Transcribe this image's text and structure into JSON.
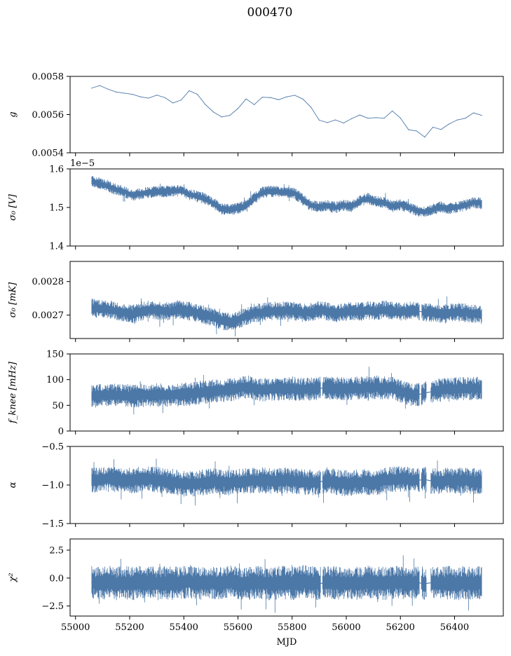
{
  "figure": {
    "title": "000470"
  },
  "chart_data": [
    {
      "type": "line",
      "ylabel": "g",
      "xlim": [
        54980,
        56580
      ],
      "ylim": [
        0.0054,
        0.0058
      ],
      "y_ticks": [
        "0.0054",
        "0.0056",
        "0.0058"
      ],
      "y_tick_values": [
        0.0054,
        0.0056,
        0.0058
      ],
      "x_ticklabels_visible": false,
      "series": [
        {
          "x": [
            55060,
            55090,
            55120,
            55150,
            55180,
            55210,
            55240,
            55270,
            55300,
            55330,
            55360,
            55390,
            55420,
            55450,
            55480,
            55510,
            55540,
            55570,
            55600,
            55630,
            55660,
            55690,
            55720,
            55750,
            55780,
            55810,
            55840,
            55870,
            55900,
            55930,
            55960,
            55990,
            56020,
            56050,
            56080,
            56110,
            56140,
            56170,
            56200,
            56230,
            56260,
            56290,
            56320,
            56350,
            56380,
            56410,
            56440,
            56470,
            56500
          ],
          "values": [
            0.005739,
            0.005752,
            0.005733,
            0.005718,
            0.005712,
            0.005706,
            0.005693,
            0.005686,
            0.005702,
            0.005689,
            0.005661,
            0.005676,
            0.005725,
            0.005706,
            0.005652,
            0.005613,
            0.005588,
            0.005596,
            0.005632,
            0.005682,
            0.005652,
            0.005691,
            0.005689,
            0.005678,
            0.005693,
            0.005701,
            0.005681,
            0.005638,
            0.005571,
            0.005558,
            0.005572,
            0.005556,
            0.005579,
            0.005598,
            0.005581,
            0.005584,
            0.005581,
            0.005619,
            0.005582,
            0.005521,
            0.005514,
            0.005482,
            0.005534,
            0.005522,
            0.005551,
            0.005572,
            0.005581,
            0.005609,
            0.005596
          ]
        }
      ],
      "style": {
        "band": 0,
        "color": "#4c78a8"
      }
    },
    {
      "type": "line",
      "ylabel": "σ₀ [V]",
      "offset_text": "1e−5",
      "xlim": [
        54980,
        56580
      ],
      "ylim": [
        1.4,
        1.6
      ],
      "y_ticks": [
        "1.4",
        "1.5",
        "1.6"
      ],
      "y_tick_values": [
        1.4,
        1.5,
        1.6
      ],
      "x_ticklabels_visible": false,
      "series": [
        {
          "x": [
            55060,
            55090,
            55120,
            55150,
            55180,
            55210,
            55240,
            55270,
            55300,
            55330,
            55360,
            55390,
            55420,
            55450,
            55480,
            55510,
            55540,
            55570,
            55600,
            55630,
            55660,
            55690,
            55720,
            55750,
            55780,
            55810,
            55840,
            55870,
            55900,
            55930,
            55960,
            55990,
            56020,
            56050,
            56080,
            56110,
            56140,
            56170,
            56200,
            56230,
            56260,
            56290,
            56320,
            56350,
            56380,
            56410,
            56440,
            56470,
            56500
          ],
          "values": [
            1.568,
            1.562,
            1.555,
            1.547,
            1.541,
            1.532,
            1.536,
            1.539,
            1.542,
            1.541,
            1.543,
            1.544,
            1.534,
            1.529,
            1.522,
            1.51,
            1.496,
            1.494,
            1.498,
            1.505,
            1.525,
            1.539,
            1.542,
            1.541,
            1.539,
            1.536,
            1.52,
            1.505,
            1.502,
            1.505,
            1.5,
            1.506,
            1.503,
            1.517,
            1.523,
            1.515,
            1.513,
            1.503,
            1.507,
            1.501,
            1.492,
            1.488,
            1.495,
            1.501,
            1.497,
            1.501,
            1.506,
            1.513,
            1.511
          ]
        }
      ],
      "style": {
        "band": 0.015,
        "color": "#4c78a8"
      }
    },
    {
      "type": "line",
      "ylabel": "σ₀ [mK]",
      "xlim": [
        54980,
        56580
      ],
      "ylim": [
        0.00263,
        0.00286
      ],
      "y_ticks": [
        "0.0027",
        "0.0028"
      ],
      "y_tick_values": [
        0.0027,
        0.0028
      ],
      "x_ticklabels_visible": false,
      "series": [
        {
          "x": [
            55060,
            55090,
            55120,
            55150,
            55180,
            55210,
            55240,
            55270,
            55300,
            55330,
            55360,
            55390,
            55420,
            55450,
            55480,
            55510,
            55540,
            55570,
            55600,
            55630,
            55660,
            55690,
            55720,
            55750,
            55780,
            55810,
            55840,
            55870,
            55900,
            55930,
            55960,
            55990,
            56020,
            56050,
            56080,
            56110,
            56140,
            56170,
            56200,
            56230,
            56260,
            56290,
            56320,
            56350,
            56380,
            56410,
            56440,
            56470,
            56500
          ],
          "values": [
            0.002722,
            0.002718,
            0.002717,
            0.002712,
            0.002707,
            0.002703,
            0.002708,
            0.002716,
            0.002714,
            0.002711,
            0.002712,
            0.002717,
            0.002712,
            0.002705,
            0.002699,
            0.002694,
            0.002682,
            0.002679,
            0.002686,
            0.002697,
            0.002706,
            0.002708,
            0.002711,
            0.002713,
            0.002714,
            0.002712,
            0.002707,
            0.002709,
            0.002714,
            0.002711,
            0.002706,
            0.002709,
            0.002712,
            0.002711,
            0.002714,
            0.002711,
            0.002716,
            0.002712,
            0.002709,
            0.002712,
            0.002713,
            0.002708,
            0.002707,
            0.002704,
            0.002707,
            0.002709,
            0.002707,
            0.002704,
            0.002701
          ]
        }
      ],
      "style": {
        "band": 2.8e-05,
        "color": "#4c78a8",
        "gaps": [
          [
            56270,
            56278
          ]
        ]
      }
    },
    {
      "type": "line",
      "ylabel": "f_knee [mHz]",
      "xlim": [
        54980,
        56580
      ],
      "ylim": [
        0,
        150
      ],
      "y_ticks": [
        "0",
        "50",
        "100",
        "150"
      ],
      "y_tick_values": [
        0,
        50,
        100,
        150
      ],
      "x_ticklabels_visible": false,
      "series": [
        {
          "x": [
            55060,
            55090,
            55120,
            55150,
            55180,
            55210,
            55240,
            55270,
            55300,
            55330,
            55360,
            55390,
            55420,
            55450,
            55480,
            55510,
            55540,
            55570,
            55600,
            55630,
            55660,
            55690,
            55720,
            55750,
            55780,
            55810,
            55840,
            55870,
            55900,
            55930,
            55960,
            55990,
            56020,
            56050,
            56080,
            56110,
            56140,
            56170,
            56200,
            56230,
            56260,
            56290,
            56320,
            56350,
            56380,
            56410,
            56440,
            56470,
            56500
          ],
          "values": [
            68,
            69,
            69,
            70,
            69,
            68,
            69,
            70,
            70,
            70,
            70,
            71,
            72,
            74,
            76,
            78,
            79,
            80,
            84,
            86,
            83,
            80,
            82,
            82,
            83,
            82,
            81,
            82,
            83,
            84,
            83,
            82,
            83,
            83,
            84,
            85,
            84,
            83,
            78,
            72,
            70,
            74,
            77,
            80,
            82,
            82,
            83,
            83,
            82
          ]
        }
      ],
      "style": {
        "band": 23,
        "color": "#4c78a8",
        "gaps": [
          [
            55905,
            55912
          ],
          [
            56270,
            56276
          ],
          [
            56296,
            56312
          ]
        ]
      }
    },
    {
      "type": "line",
      "ylabel": "α",
      "xlim": [
        54980,
        56580
      ],
      "ylim": [
        -1.5,
        -0.5
      ],
      "y_ticks": [
        "−1.5",
        "−1.0",
        "−0.5"
      ],
      "y_tick_values": [
        -1.5,
        -1.0,
        -0.5
      ],
      "x_ticklabels_visible": false,
      "series": [
        {
          "x": [
            55060,
            55090,
            55120,
            55150,
            55180,
            55210,
            55240,
            55270,
            55300,
            55330,
            55360,
            55390,
            55420,
            55450,
            55480,
            55510,
            55540,
            55570,
            55600,
            55630,
            55660,
            55690,
            55720,
            55750,
            55780,
            55810,
            55840,
            55870,
            55900,
            55930,
            55960,
            55990,
            56020,
            56050,
            56080,
            56110,
            56140,
            56170,
            56200,
            56230,
            56260,
            56290,
            56320,
            56350,
            56380,
            56410,
            56440,
            56470,
            56500
          ],
          "values": [
            -0.94,
            -0.93,
            -0.92,
            -0.93,
            -0.94,
            -0.94,
            -0.93,
            -0.92,
            -0.93,
            -0.95,
            -0.96,
            -0.98,
            -0.99,
            -0.98,
            -0.96,
            -0.95,
            -0.96,
            -0.97,
            -0.96,
            -0.95,
            -0.94,
            -0.94,
            -0.95,
            -0.94,
            -0.94,
            -0.95,
            -0.96,
            -0.97,
            -0.96,
            -0.94,
            -0.96,
            -0.98,
            -0.97,
            -0.97,
            -0.96,
            -0.98,
            -0.94,
            -0.93,
            -0.92,
            -0.93,
            -0.94,
            -0.93,
            -0.95,
            -0.95,
            -0.94,
            -0.95,
            -0.94,
            -0.95,
            -0.96
          ]
        }
      ],
      "style": {
        "band": 0.17,
        "color": "#4c78a8",
        "gaps": [
          [
            55905,
            55912
          ],
          [
            56270,
            56276
          ],
          [
            56296,
            56312
          ]
        ]
      }
    },
    {
      "type": "line",
      "ylabel": "χ²",
      "xlabel": "MJD",
      "xlim": [
        54980,
        56580
      ],
      "ylim": [
        -3.4,
        3.5
      ],
      "y_ticks": [
        "−2.5",
        "0.0",
        "2.5"
      ],
      "y_tick_values": [
        -2.5,
        0,
        2.5
      ],
      "x_ticks": [
        "55000",
        "55200",
        "55400",
        "55600",
        "55800",
        "56000",
        "56200",
        "56400"
      ],
      "x_tick_values": [
        55000,
        55200,
        55400,
        55600,
        55800,
        56000,
        56200,
        56400
      ],
      "x_ticklabels_visible": true,
      "series": [
        {
          "x": [
            55060,
            55090,
            55120,
            55150,
            55180,
            55210,
            55240,
            55270,
            55300,
            55330,
            55360,
            55390,
            55420,
            55450,
            55480,
            55510,
            55540,
            55570,
            55600,
            55630,
            55660,
            55690,
            55720,
            55750,
            55780,
            55810,
            55840,
            55870,
            55900,
            55930,
            55960,
            55990,
            56020,
            56050,
            56080,
            56110,
            56140,
            56170,
            56200,
            56230,
            56260,
            56290,
            56320,
            56350,
            56380,
            56410,
            56440,
            56470,
            56500
          ],
          "values": [
            -0.4,
            -0.5,
            -0.4,
            -0.5,
            -0.4,
            -0.5,
            -0.4,
            -0.3,
            -0.5,
            -0.4,
            -0.5,
            -0.4,
            -0.3,
            -0.5,
            -0.4,
            -0.4,
            -0.5,
            -0.3,
            -0.4,
            -0.5,
            -0.4,
            -0.4,
            -0.5,
            -0.4,
            -0.4,
            -0.5,
            -0.3,
            -0.4,
            -0.5,
            -0.4,
            -0.4,
            -0.5,
            -0.4,
            -0.5,
            -0.3,
            -0.4,
            -0.5,
            -0.4,
            -0.4,
            -0.5,
            -0.4,
            -0.5,
            -0.4,
            -0.5,
            -0.4,
            -0.5,
            -0.4,
            -0.5,
            -0.4
          ]
        }
      ],
      "style": {
        "band": 1.5,
        "color": "#4c78a8",
        "gaps": [
          [
            55905,
            55912
          ],
          [
            56270,
            56276
          ],
          [
            56296,
            56312
          ]
        ]
      }
    }
  ]
}
